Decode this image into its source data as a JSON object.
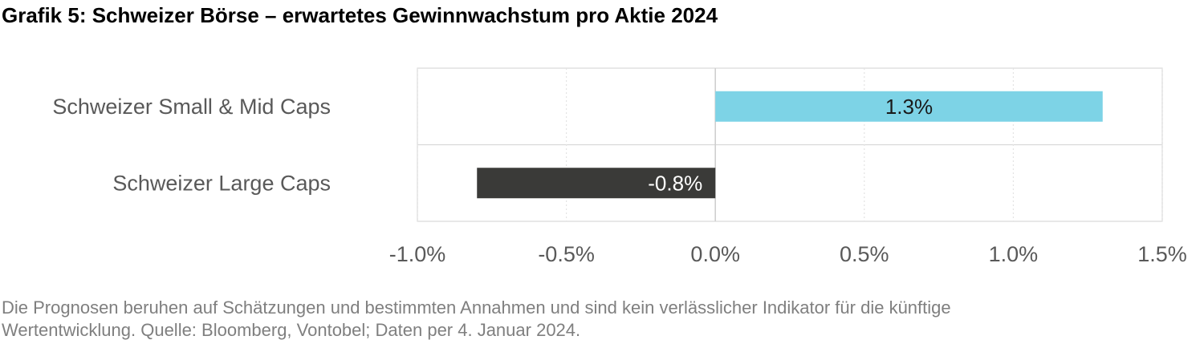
{
  "title": "Grafik 5: Schweizer Börse – erwartetes Gewinnwachstum pro Aktie 2024",
  "footnote": {
    "line1": "Die Prognosen beruhen auf Schätzungen und bestimmten Annahmen und sind kein verlässlicher Indikator für die künftige",
    "line2": "Wertentwicklung. Quelle: Bloomberg, Vontobel; Daten per 4. Januar 2024."
  },
  "chart_data": {
    "type": "bar",
    "orientation": "horizontal",
    "title": "Grafik 5: Schweizer Börse – erwartetes Gewinnwachstum pro Aktie 2024",
    "categories": [
      "Schweizer Small & Mid Caps",
      "Schweizer Large Caps"
    ],
    "values": [
      1.3,
      -0.8
    ],
    "data_labels": [
      "1.3%",
      "-0.8%"
    ],
    "colors": [
      "#7dd3e6",
      "#3a3a38"
    ],
    "label_colors": [
      "#1a1a1a",
      "#ffffff"
    ],
    "xlim": [
      -1.0,
      1.5
    ],
    "xticks": [
      -1.0,
      -0.5,
      0.0,
      0.5,
      1.0,
      1.5
    ],
    "xtick_labels": [
      "-1.0%",
      "-0.5%",
      "0.0%",
      "0.5%",
      "1.0%",
      "1.5%"
    ],
    "xlabel": "",
    "ylabel": "",
    "grid": true,
    "legend": "none"
  }
}
